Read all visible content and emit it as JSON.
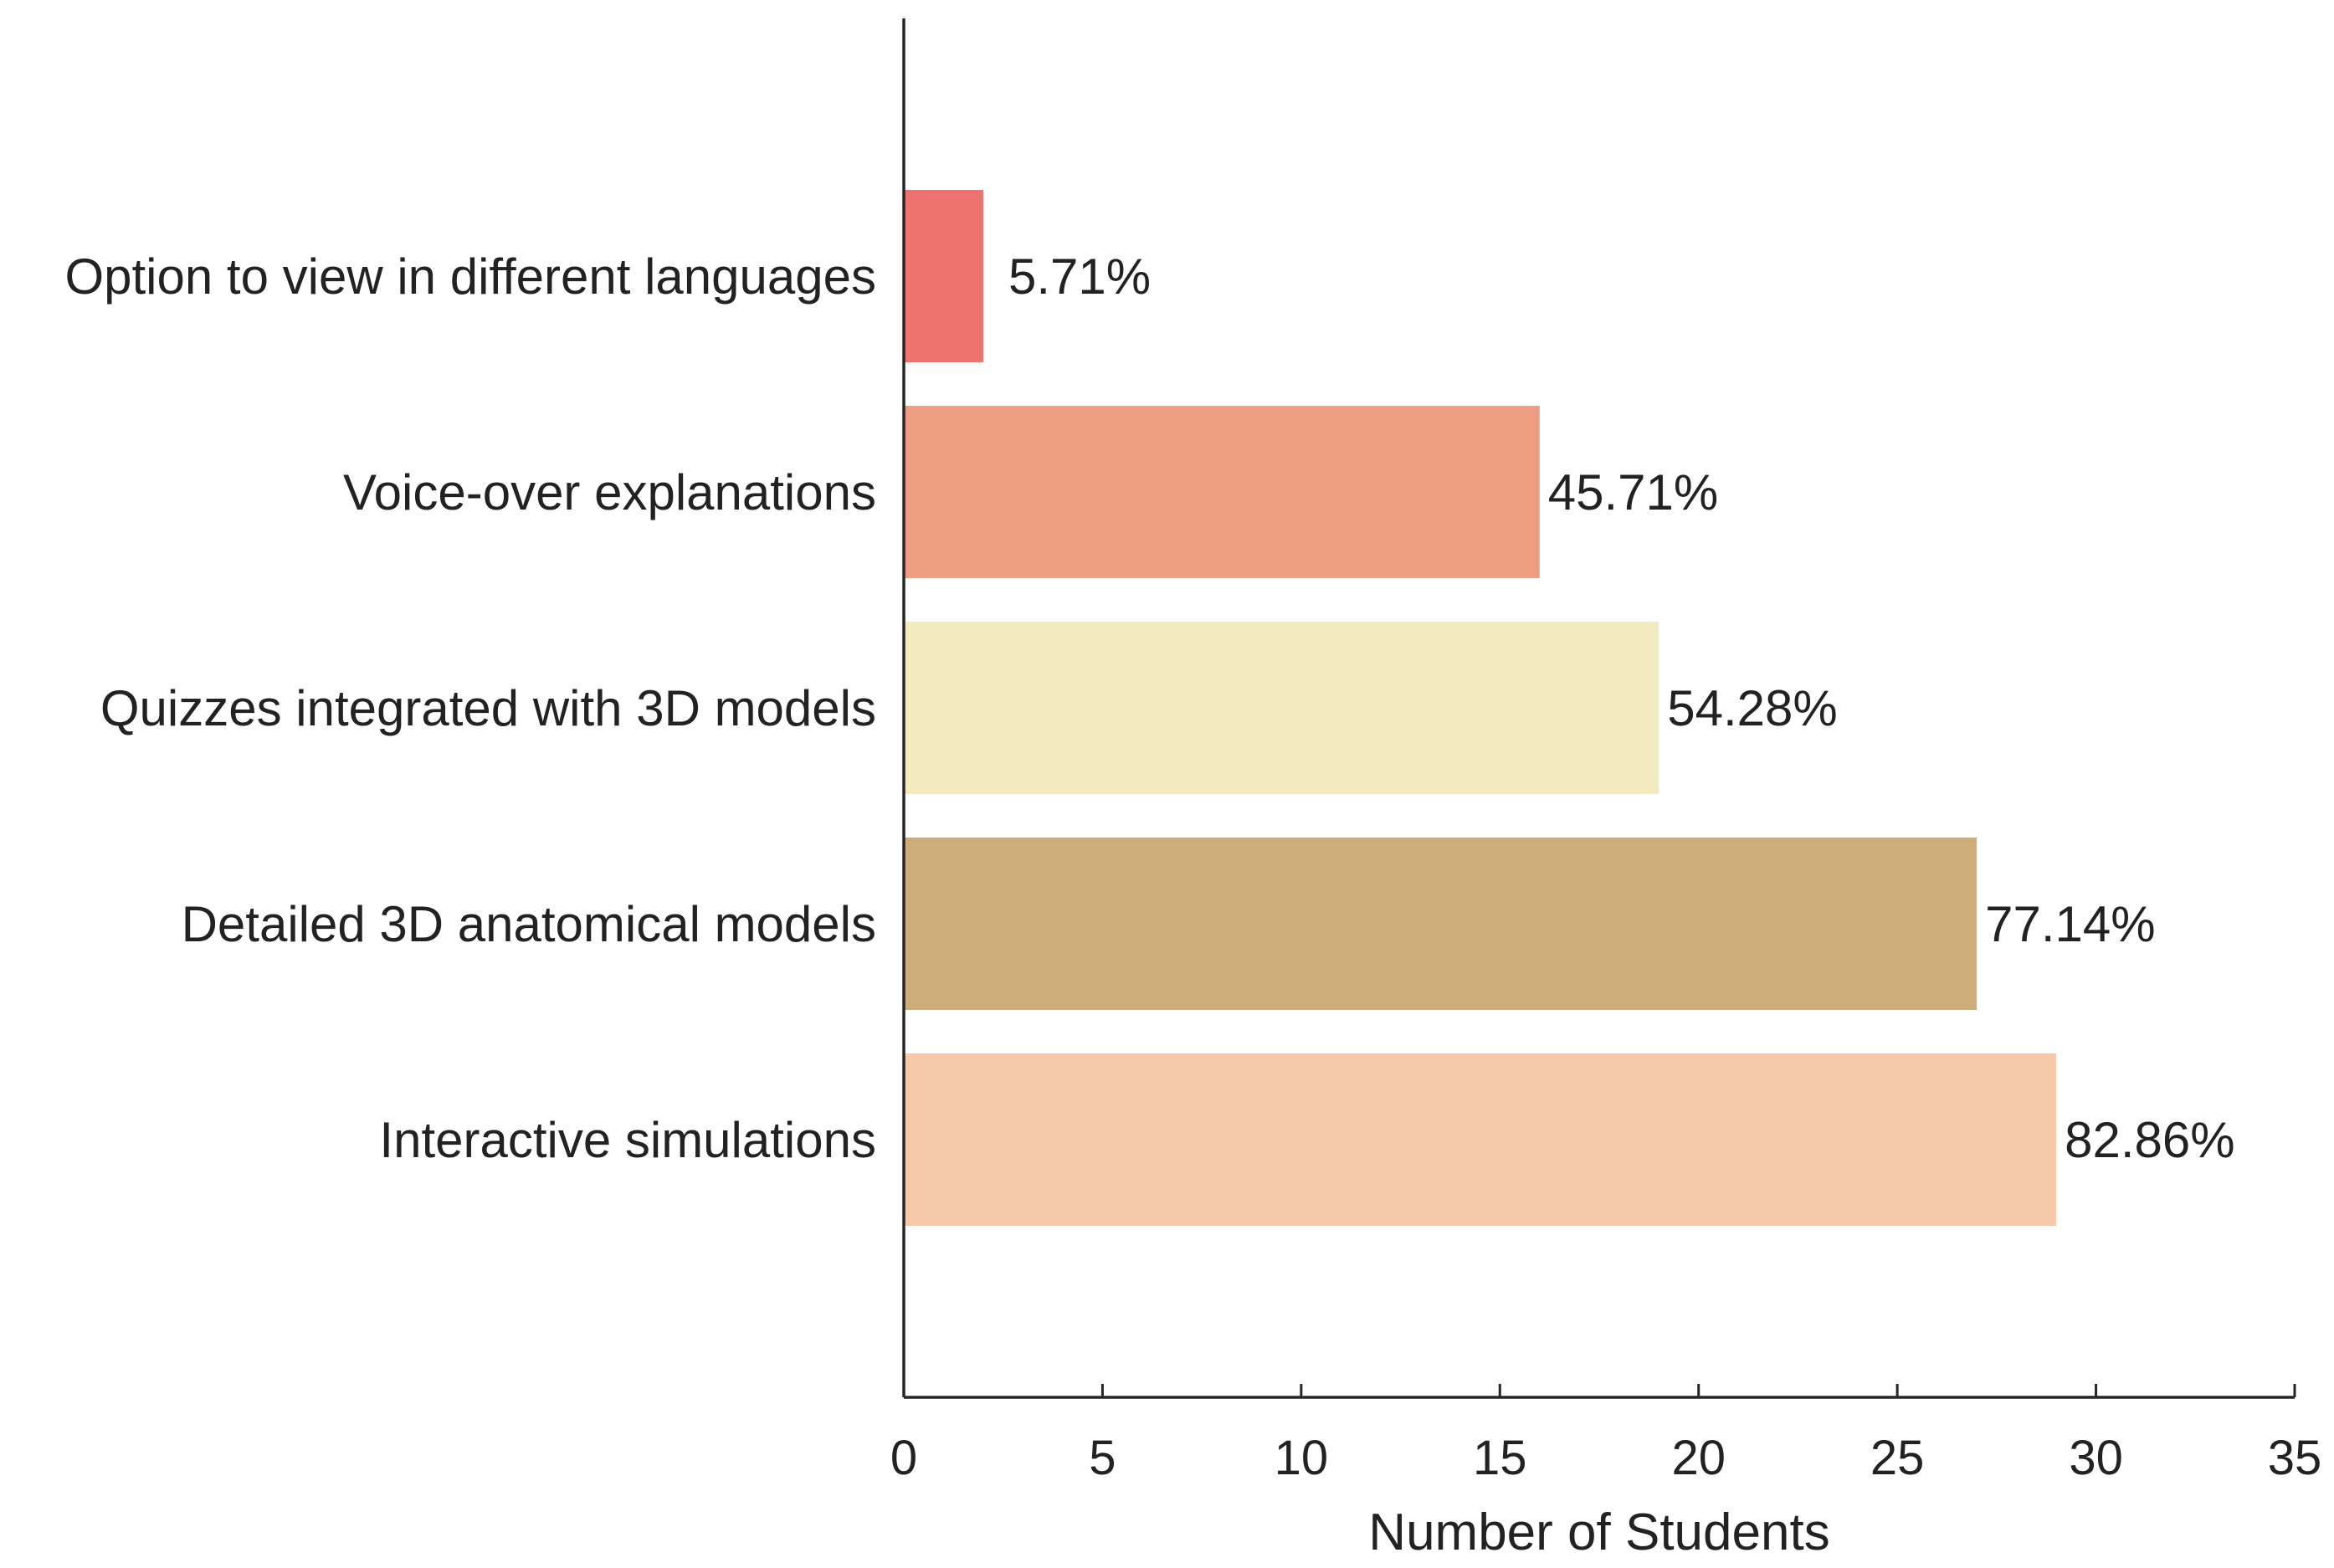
{
  "chart_data": {
    "type": "bar",
    "orientation": "horizontal",
    "title": "",
    "xlabel": "Number of Students",
    "ylabel": "",
    "xlim": [
      0,
      35
    ],
    "x_ticks": [
      0,
      5,
      10,
      15,
      20,
      25,
      30,
      35
    ],
    "grid": false,
    "categories": [
      "Option to view in different languages",
      "Voice-over explanations",
      "Quizzes integrated with 3D models",
      "Detailed 3D anatomical models",
      "Interactive simulations"
    ],
    "values": [
      2,
      16,
      19,
      27,
      29
    ],
    "data_labels": [
      "5.71%",
      "45.71%",
      "54.28%",
      "77.14%",
      "82.86%"
    ],
    "colors": [
      "#ee7370",
      "#ee9e82",
      "#f3ebbf",
      "#cdae7b",
      "#f6c9aa"
    ]
  }
}
